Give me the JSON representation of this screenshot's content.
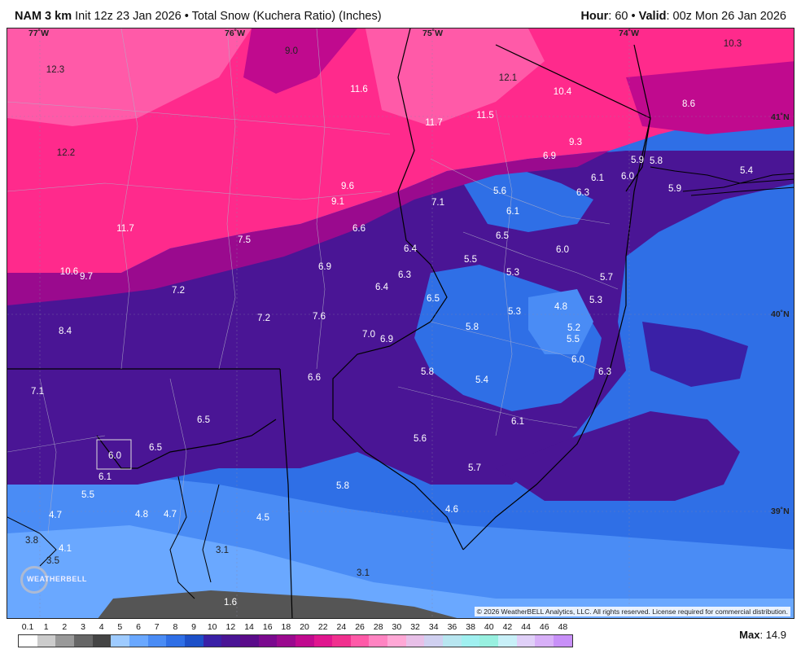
{
  "header": {
    "model": "NAM 3 km",
    "init": "Init 12z 23 Jan 2026",
    "bullet": "•",
    "product": "Total Snow (Kuchera Ratio) (Inches)",
    "hour_label": "Hour",
    "hour_value": ": 60",
    "bullet2": " • ",
    "valid_label": "Valid",
    "valid_value": ": 00z Mon 26 Jan 2026"
  },
  "longitude_ticks": [
    "77˚W",
    "76˚W",
    "75˚W",
    "74˚W"
  ],
  "latitude_ticks": [
    "41˚N",
    "40˚N",
    "39˚N"
  ],
  "snow_labels": [
    {
      "v": "9.0",
      "c": "dark"
    },
    {
      "v": "10.3",
      "c": "dark"
    },
    {
      "v": "12.3",
      "c": "dark"
    },
    {
      "v": "11.6",
      "c": "light"
    },
    {
      "v": "12.1",
      "c": "dark"
    },
    {
      "v": "10.4",
      "c": "light"
    },
    {
      "v": "11.5",
      "c": "light"
    },
    {
      "v": "11.7",
      "c": "light"
    },
    {
      "v": "8.6",
      "c": "light"
    },
    {
      "v": "12.2",
      "c": "dark"
    },
    {
      "v": "9.3",
      "c": "light"
    },
    {
      "v": "6.9",
      "c": "light"
    },
    {
      "v": "5.9",
      "c": "light"
    },
    {
      "v": "5.8",
      "c": "light"
    },
    {
      "v": "6.1",
      "c": "light"
    },
    {
      "v": "6.0",
      "c": "light"
    },
    {
      "v": "5.4",
      "c": "light"
    },
    {
      "v": "9.6",
      "c": "light"
    },
    {
      "v": "9.1",
      "c": "light"
    },
    {
      "v": "5.6",
      "c": "light"
    },
    {
      "v": "6.3",
      "c": "light"
    },
    {
      "v": "5.9",
      "c": "light"
    },
    {
      "v": "7.1",
      "c": "light"
    },
    {
      "v": "6.1",
      "c": "light"
    },
    {
      "v": "11.7",
      "c": "light"
    },
    {
      "v": "6.6",
      "c": "light"
    },
    {
      "v": "6.5",
      "c": "light"
    },
    {
      "v": "7.5",
      "c": "light"
    },
    {
      "v": "6.4",
      "c": "light"
    },
    {
      "v": "6.0",
      "c": "light"
    },
    {
      "v": "5.5",
      "c": "light"
    },
    {
      "v": "6.9",
      "c": "light"
    },
    {
      "v": "6.3",
      "c": "light"
    },
    {
      "v": "5.3",
      "c": "light"
    },
    {
      "v": "10.6",
      "c": "light"
    },
    {
      "v": "9.7",
      "c": "light"
    },
    {
      "v": "5.7",
      "c": "light"
    },
    {
      "v": "7.2",
      "c": "light"
    },
    {
      "v": "6.4",
      "c": "light"
    },
    {
      "v": "6.5",
      "c": "light"
    },
    {
      "v": "5.3",
      "c": "light"
    },
    {
      "v": "5.3",
      "c": "light"
    },
    {
      "v": "4.8",
      "c": "light"
    },
    {
      "v": "7.2",
      "c": "light"
    },
    {
      "v": "7.6",
      "c": "light"
    },
    {
      "v": "8.4",
      "c": "light"
    },
    {
      "v": "5.8",
      "c": "light"
    },
    {
      "v": "5.2",
      "c": "light"
    },
    {
      "v": "7.0",
      "c": "light"
    },
    {
      "v": "6.9",
      "c": "light"
    },
    {
      "v": "5.5",
      "c": "light"
    },
    {
      "v": "6.0",
      "c": "light"
    },
    {
      "v": "6.3",
      "c": "light"
    },
    {
      "v": "6.6",
      "c": "light"
    },
    {
      "v": "5.8",
      "c": "light"
    },
    {
      "v": "5.4",
      "c": "light"
    },
    {
      "v": "7.1",
      "c": "light"
    },
    {
      "v": "6.5",
      "c": "light"
    },
    {
      "v": "6.1",
      "c": "light"
    },
    {
      "v": "6.0",
      "c": "light"
    },
    {
      "v": "6.5",
      "c": "light"
    },
    {
      "v": "5.6",
      "c": "light"
    },
    {
      "v": "6.1",
      "c": "light"
    },
    {
      "v": "5.7",
      "c": "light"
    },
    {
      "v": "5.5",
      "c": "light"
    },
    {
      "v": "5.8",
      "c": "light"
    },
    {
      "v": "4.7",
      "c": "light"
    },
    {
      "v": "4.8",
      "c": "light"
    },
    {
      "v": "4.7",
      "c": "light"
    },
    {
      "v": "4.5",
      "c": "light"
    },
    {
      "v": "4.6",
      "c": "light"
    },
    {
      "v": "3.8",
      "c": "dark"
    },
    {
      "v": "4.1",
      "c": "light"
    },
    {
      "v": "3.1",
      "c": "dark"
    },
    {
      "v": "3.5",
      "c": "dark"
    },
    {
      "v": "3.1",
      "c": "dark"
    },
    {
      "v": "1.6",
      "c": "light"
    }
  ],
  "logo_text": "WEATHERBELL",
  "copyright": "© 2026 WeatherBELL Analytics, LLC. All rights reserved. License required for commercial distribution.",
  "legend": {
    "labels": [
      "0.1",
      "1",
      "2",
      "3",
      "4",
      "5",
      "6",
      "7",
      "8",
      "9",
      "10",
      "12",
      "14",
      "16",
      "18",
      "20",
      "22",
      "24",
      "26",
      "28",
      "30",
      "32",
      "34",
      "36",
      "38",
      "40",
      "42",
      "44",
      "46",
      "48"
    ],
    "colors": [
      "#ffffff",
      "#cccccc",
      "#999999",
      "#666666",
      "#444444",
      "#9ecbff",
      "#6aa8ff",
      "#4a8cf5",
      "#2f6fe6",
      "#1d50c8",
      "#3a20a6",
      "#4a1595",
      "#5a0c8a",
      "#7a0a8e",
      "#9a0a8e",
      "#c00a8e",
      "#e0168e",
      "#f0308e",
      "#ff5aa8",
      "#ff84c2",
      "#ffa8d6",
      "#e8c0e8",
      "#d0d0f0",
      "#b8e6f0",
      "#a0f0f0",
      "#98f0e0",
      "#c8f0f8",
      "#e0d0f8",
      "#d8b0f8",
      "#c890f8"
    ]
  },
  "max": {
    "label": "Max",
    "value": ": 14.9"
  },
  "colors": {
    "pink_heavy": "#ff2a8c",
    "magenta": "#e0168e",
    "purple": "#4a1595",
    "blue": "#2f6fe6",
    "light_blue": "#6aa8ff",
    "gray": "#555555"
  }
}
